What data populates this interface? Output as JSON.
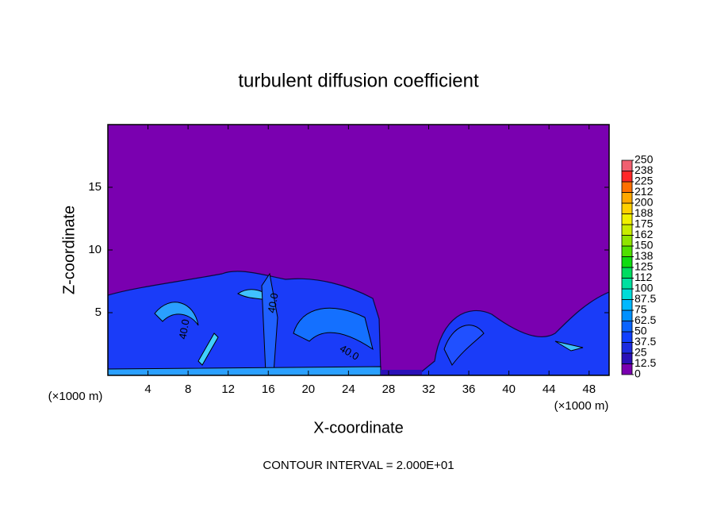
{
  "chart_data": {
    "type": "contour",
    "title": "turbulent diffusion coefficient",
    "x_label": "X-coordinate",
    "y_label": "Z-coordinate",
    "x_units": [
      "(×1000 m)",
      "(×1000 m)"
    ],
    "note": "CONTOUR INTERVAL = 2.000E+01",
    "contour_labels": [
      "40.0",
      "40.0",
      "40.0"
    ],
    "xlim": [
      0,
      50
    ],
    "xticks": [
      4,
      8,
      12,
      16,
      20,
      24,
      28,
      32,
      36,
      40,
      44,
      48
    ],
    "ylim": [
      0,
      20
    ],
    "yticks": [
      5,
      10,
      15
    ],
    "colorbar": {
      "ticks": [
        0,
        12.5,
        25,
        37.5,
        50,
        62.5,
        75,
        87.5,
        100,
        {
          "value": 112.5,
          "label": "112"
        },
        125,
        {
          "value": 137.5,
          "label": "138"
        },
        150,
        {
          "value": 162.5,
          "label": "162"
        },
        175,
        {
          "value": 187.5,
          "label": "188"
        },
        200,
        {
          "value": 212.5,
          "label": "212"
        },
        225,
        {
          "value": 237.5,
          "label": "238"
        },
        250
      ],
      "colors": [
        "#7a00b0",
        "#2a10b8",
        "#1c2ce0",
        "#1040ff",
        "#0a64ff",
        "#0090ff",
        "#00b8ff",
        "#00dcd8",
        "#00e0a0",
        "#00dc60",
        "#10dc10",
        "#50e000",
        "#90e400",
        "#c8ec00",
        "#f0f000",
        "#ffd000",
        "#ffa800",
        "#ff7000",
        "#ff2828",
        "#f06070"
      ]
    }
  }
}
